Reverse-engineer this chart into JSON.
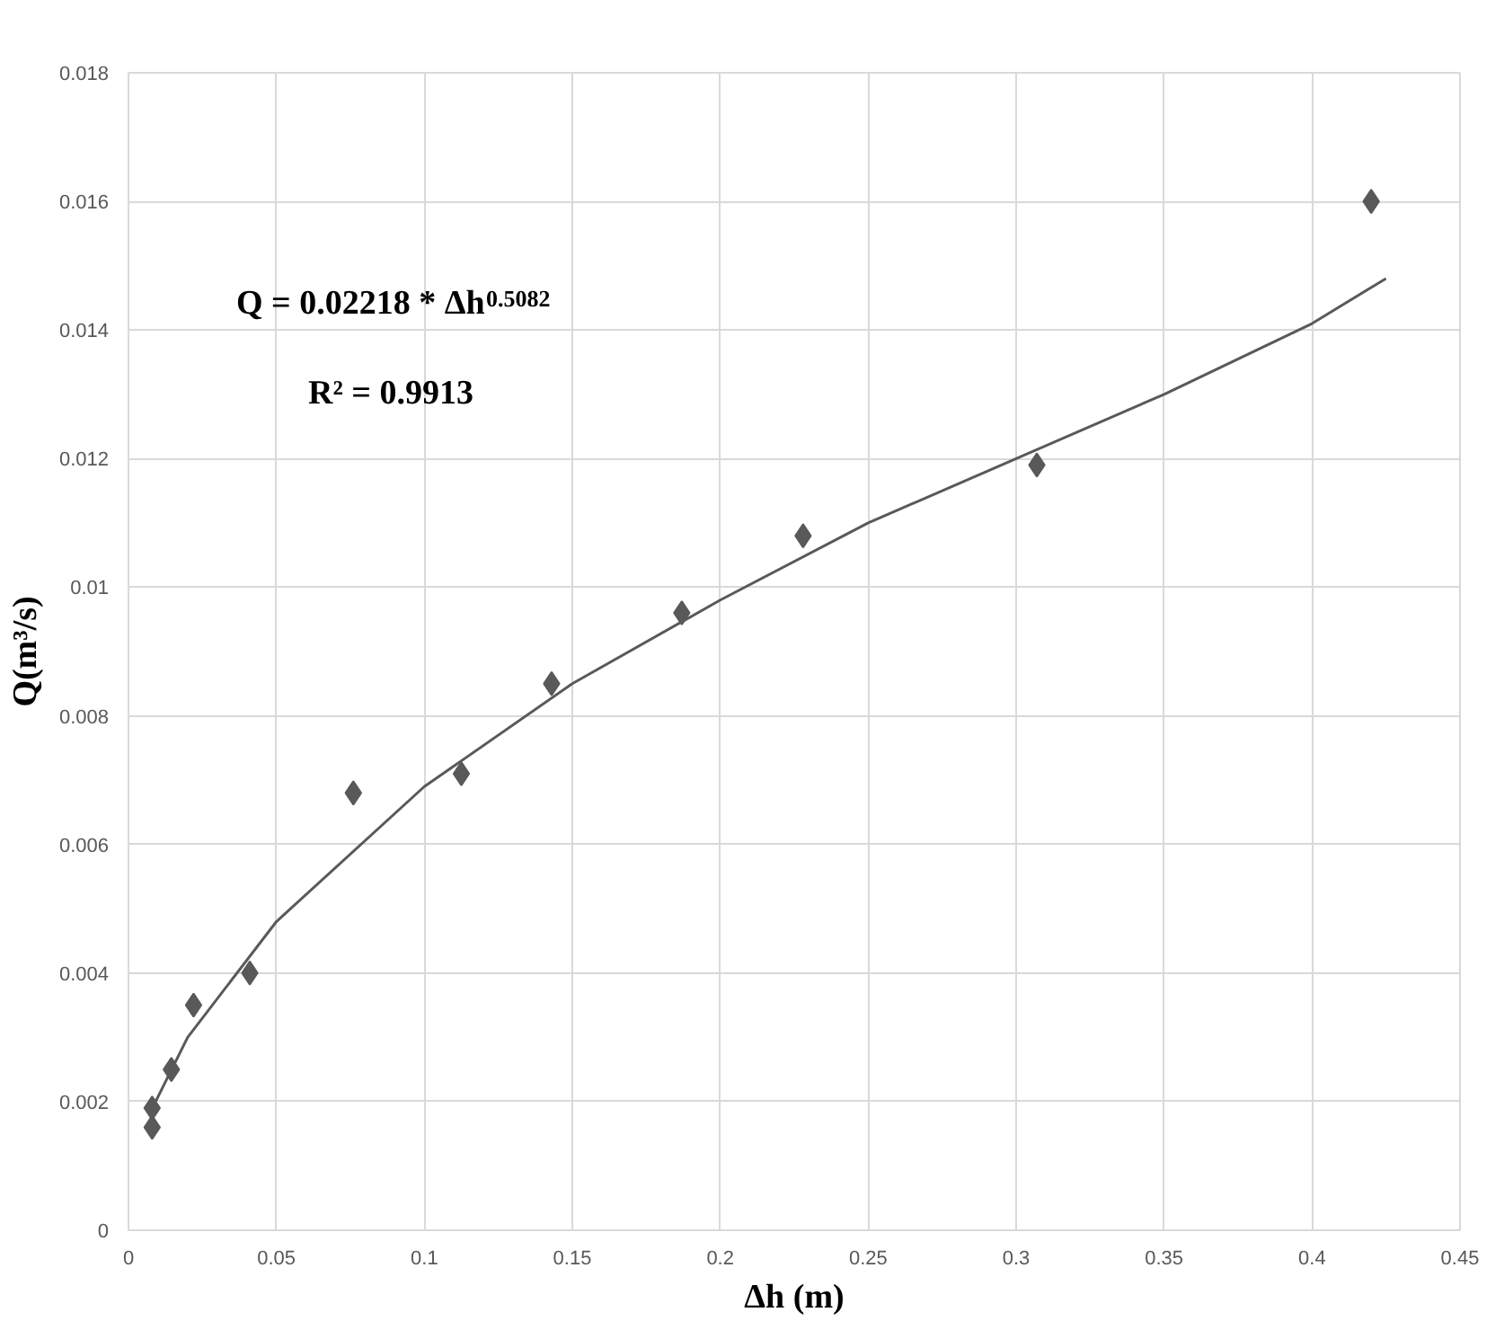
{
  "chart_data": {
    "type": "scatter",
    "xlabel": "Δh (m)",
    "ylabel": "Q(m³/s)",
    "xlim": [
      0,
      0.45
    ],
    "xticks": [
      0,
      0.05,
      0.1,
      0.15,
      0.2,
      0.25,
      0.3,
      0.35,
      0.4,
      0.45
    ],
    "ylim": [
      0,
      0.018
    ],
    "yticks": [
      0,
      0.002,
      0.004,
      0.006,
      0.008,
      0.01,
      0.012,
      0.014,
      0.016,
      0.018
    ],
    "grid": true,
    "marker": "diamond",
    "annotations": [
      "Q = 0.02218 * Δh$^{0.5082}$",
      "R² = 0.9913"
    ],
    "series": [
      {
        "color": "#595959",
        "x": [
          0.008,
          0.008,
          0.0145,
          0.022,
          0.041,
          0.076,
          0.1125,
          0.143,
          0.187,
          0.228,
          0.307,
          0.42
        ],
        "values": [
          0.0016,
          0.0019,
          0.0025,
          0.0035,
          0.004,
          0.0068,
          0.0071,
          0.0085,
          0.0096,
          0.0108,
          0.0119,
          0.016
        ]
      },
      {
        "type": "line",
        "color": "#595959",
        "line_style": "solid",
        "marker": "none",
        "x": [
          0.007,
          0.02,
          0.05,
          0.1,
          0.15,
          0.2,
          0.25,
          0.3,
          0.35,
          0.4,
          0.425
        ],
        "values": [
          0.0018,
          0.003,
          0.0048,
          0.0069,
          0.0085,
          0.0098,
          0.011,
          0.012,
          0.013,
          0.0141,
          0.0148
        ]
      }
    ]
  }
}
